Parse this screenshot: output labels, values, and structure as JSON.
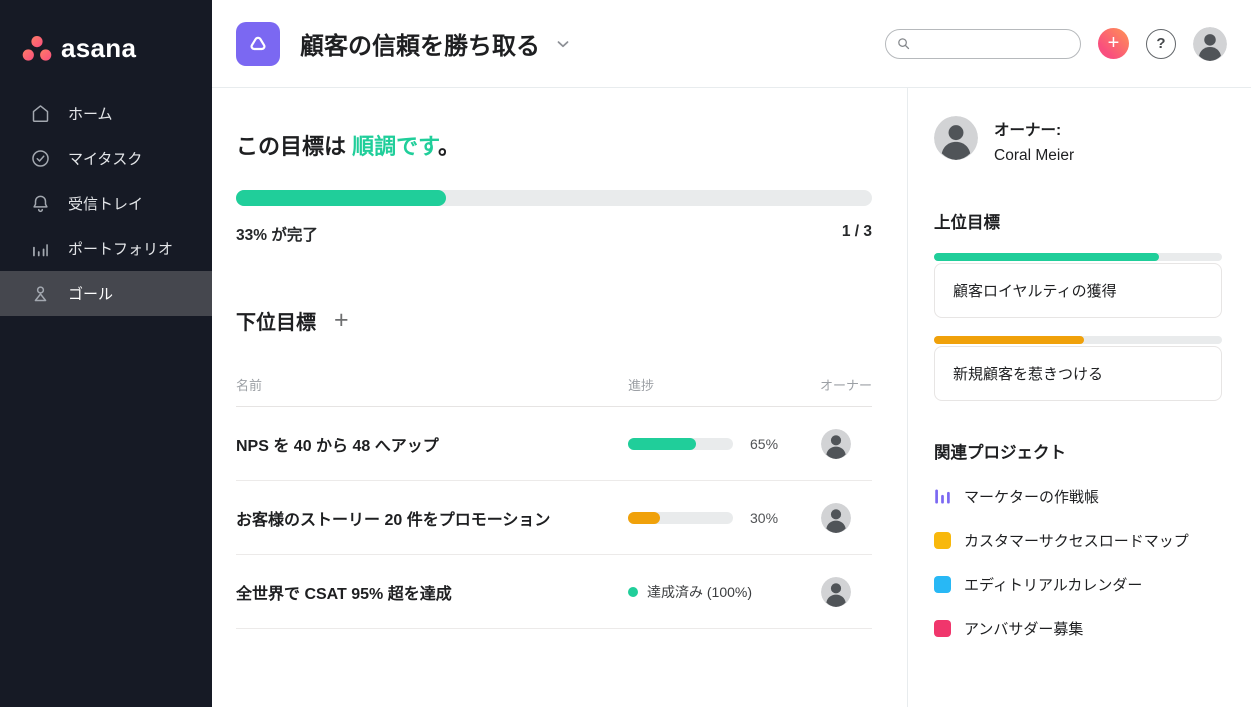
{
  "colors": {
    "sidebar_bg": "#161a25",
    "sidebar_active_bg": "#45474e",
    "accent_green": "#20ce9a",
    "accent_orange": "#f0a10a",
    "accent_purple": "#7b68f2",
    "accent_pink": "#f94f7e",
    "project_yellow": "#f8b80c",
    "project_blue": "#28b8f5",
    "project_crimson": "#f0366c",
    "track_gray": "#e9ebec"
  },
  "sidebar": {
    "logo_text": "asana",
    "items": [
      {
        "id": "home",
        "label": "ホーム",
        "icon": "home-icon"
      },
      {
        "id": "my-tasks",
        "label": "マイタスク",
        "icon": "check-circle-icon"
      },
      {
        "id": "inbox",
        "label": "受信トレイ",
        "icon": "bell-icon"
      },
      {
        "id": "portfolio",
        "label": "ポートフォリオ",
        "icon": "bar-chart-icon"
      },
      {
        "id": "goals",
        "label": "ゴール",
        "icon": "person-icon",
        "active": true
      }
    ]
  },
  "topbar": {
    "title": "顧客の信頼を勝ち取る",
    "search_placeholder": "",
    "plus_label": "+",
    "help_label": "?"
  },
  "status": {
    "prefix": "この目標は ",
    "highlight": "順調です",
    "suffix": "。",
    "progress_pct": 33,
    "completion_label": "33% が完了",
    "fraction_label": "1 / 3"
  },
  "subgoals": {
    "heading": "下位目標",
    "add_label": "+",
    "columns": [
      "名前",
      "進捗",
      "オーナー"
    ],
    "rows": [
      {
        "name": "NPS を 40 から 48 へアップ",
        "progress_pct": 65,
        "progress_label": "65%",
        "bar_color": "#20ce9a"
      },
      {
        "name": "お客様のストーリー 20 件をプロモーション",
        "progress_pct": 30,
        "progress_label": "30%",
        "bar_color": "#f0a10a"
      },
      {
        "name": "全世界で CSAT 95% 超を達成",
        "status_label": "達成済み (100%)",
        "status_color": "#20ce9a"
      }
    ]
  },
  "panel": {
    "owner_label": "オーナー:",
    "owner_name": "Coral Meier",
    "parent_heading": "上位目標",
    "parent_goals": [
      {
        "name": "顧客ロイヤルティの獲得",
        "progress_pct": 78,
        "color": "#20ce9a"
      },
      {
        "name": "新規顧客を惹きつける",
        "progress_pct": 52,
        "color": "#f0a10a"
      }
    ],
    "projects_heading": "関連プロジェクト",
    "projects": [
      {
        "name": "マーケターの作戦帳",
        "icon": "column-chart-icon",
        "color": "#7b68f2"
      },
      {
        "name": "カスタマーサクセスロードマップ",
        "icon": "square-icon",
        "color": "#f8b80c"
      },
      {
        "name": "エディトリアルカレンダー",
        "icon": "square-icon",
        "color": "#28b8f5"
      },
      {
        "name": "アンバサダー募集",
        "icon": "square-icon",
        "color": "#f0366c"
      }
    ]
  }
}
